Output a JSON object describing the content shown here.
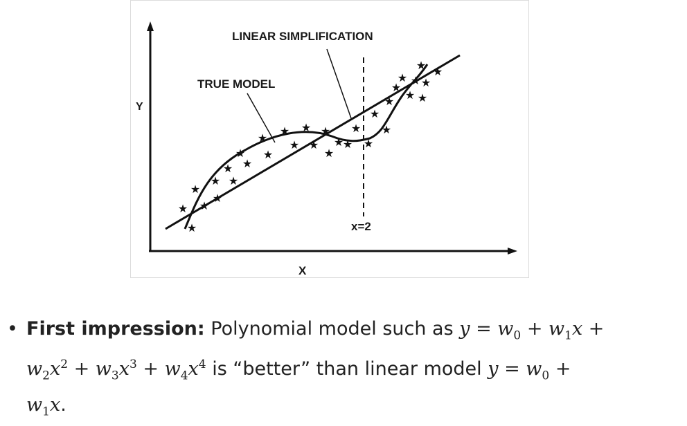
{
  "diagram": {
    "linear_label": "LINEAR SIMPLIFICATION",
    "true_label": "TRUE MODEL",
    "y_axis_label": "Y",
    "x_axis_label": "X",
    "divider_label": "x=2",
    "star_glyph": "★",
    "line_color": "#111111"
  },
  "caption": {
    "bullet": "•",
    "lead": "First impression:",
    "line1_text": "Polynomial model such as",
    "eq1_y": "y",
    "eq1_rest": " = w",
    "line2_mid": "is “better” than linear model",
    "line3_end": "."
  }
}
